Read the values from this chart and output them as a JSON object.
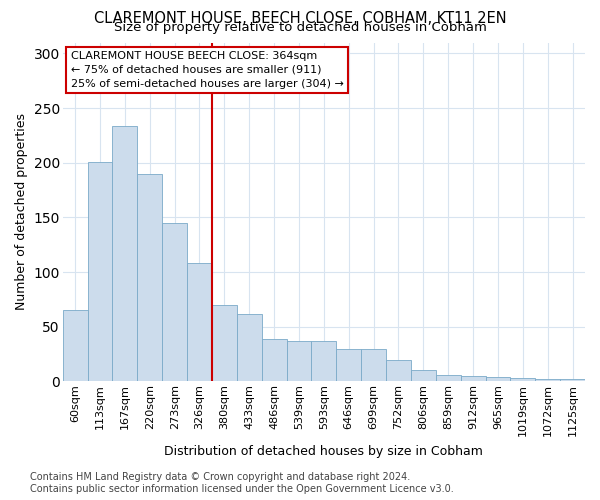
{
  "title1": "CLAREMONT HOUSE, BEECH CLOSE, COBHAM, KT11 2EN",
  "title2": "Size of property relative to detached houses in Cobham",
  "xlabel": "Distribution of detached houses by size in Cobham",
  "ylabel": "Number of detached properties",
  "categories": [
    "60sqm",
    "113sqm",
    "167sqm",
    "220sqm",
    "273sqm",
    "326sqm",
    "380sqm",
    "433sqm",
    "486sqm",
    "539sqm",
    "593sqm",
    "646sqm",
    "699sqm",
    "752sqm",
    "806sqm",
    "859sqm",
    "912sqm",
    "965sqm",
    "1019sqm",
    "1072sqm",
    "1125sqm"
  ],
  "values": [
    65,
    201,
    234,
    190,
    145,
    108,
    70,
    62,
    39,
    37,
    37,
    30,
    30,
    20,
    10,
    6,
    5,
    4,
    3,
    2,
    2
  ],
  "bar_color": "#ccdcec",
  "bar_edge_color": "#7aaac8",
  "red_line_index": 6,
  "red_line_color": "#cc0000",
  "annotation_box_text": "CLAREMONT HOUSE BEECH CLOSE: 364sqm\n← 75% of detached houses are smaller (911)\n25% of semi-detached houses are larger (304) →",
  "ylim": [
    0,
    310
  ],
  "yticks": [
    0,
    50,
    100,
    150,
    200,
    250,
    300
  ],
  "footer_line1": "Contains HM Land Registry data © Crown copyright and database right 2024.",
  "footer_line2": "Contains public sector information licensed under the Open Government Licence v3.0.",
  "bg_color": "#ffffff",
  "plot_bg_color": "#ffffff",
  "grid_color": "#d8e4f0",
  "title1_fontsize": 10.5,
  "title2_fontsize": 9.5,
  "axis_label_fontsize": 9,
  "tick_fontsize": 8,
  "annotation_fontsize": 8,
  "footer_fontsize": 7
}
